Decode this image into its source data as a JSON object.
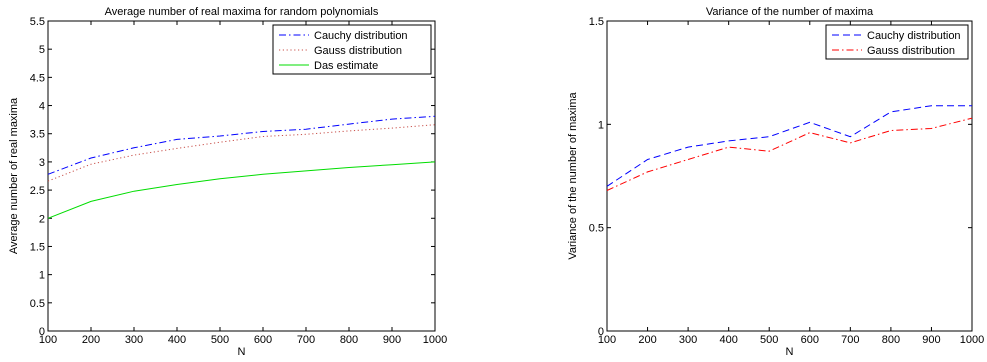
{
  "chart_data": [
    {
      "type": "line",
      "title": "Average number of real maxima for random polynomials",
      "xlabel": "N",
      "ylabel": "Average number of real maxima",
      "xlim": [
        100,
        1000
      ],
      "ylim": [
        0,
        5.5
      ],
      "xticks": [
        100,
        200,
        300,
        400,
        500,
        600,
        700,
        800,
        900,
        1000
      ],
      "yticks": [
        0,
        0.5,
        1,
        1.5,
        2,
        2.5,
        3,
        3.5,
        4,
        4.5,
        5,
        5.5
      ],
      "grid": false,
      "legend": "top-right",
      "x": [
        100,
        200,
        300,
        400,
        500,
        600,
        700,
        800,
        900,
        1000
      ],
      "series": [
        {
          "name": "Cauchy distribution",
          "color": "#0000ff",
          "dash": "dashdot",
          "values": [
            2.78,
            3.07,
            3.25,
            3.4,
            3.46,
            3.54,
            3.58,
            3.67,
            3.76,
            3.81
          ]
        },
        {
          "name": "Gauss distribution",
          "color": "#c8504a",
          "dash": "dotted",
          "values": [
            2.66,
            2.96,
            3.12,
            3.24,
            3.35,
            3.45,
            3.49,
            3.55,
            3.6,
            3.66
          ]
        },
        {
          "name": "Das estimate",
          "color": "#00dd00",
          "dash": "solid",
          "values": [
            2.0,
            2.3,
            2.48,
            2.6,
            2.7,
            2.78,
            2.84,
            2.9,
            2.95,
            3.0
          ]
        }
      ]
    },
    {
      "type": "line",
      "title": "Variance of the number of maxima",
      "xlabel": "N",
      "ylabel": "Variance of the number of maxima",
      "xlim": [
        100,
        1000
      ],
      "ylim": [
        0,
        1.5
      ],
      "xticks": [
        100,
        200,
        300,
        400,
        500,
        600,
        700,
        800,
        900,
        1000
      ],
      "yticks": [
        0,
        0.5,
        1,
        1.5
      ],
      "grid": false,
      "legend": "top-right",
      "x": [
        100,
        200,
        300,
        400,
        500,
        600,
        700,
        800,
        900,
        1000
      ],
      "series": [
        {
          "name": "Cauchy distribution",
          "color": "#0000ff",
          "dash": "dashed",
          "values": [
            0.7,
            0.83,
            0.89,
            0.92,
            0.94,
            1.01,
            0.94,
            1.06,
            1.09,
            1.09
          ]
        },
        {
          "name": "Gauss distribution",
          "color": "#ff0000",
          "dash": "dashdot",
          "values": [
            0.68,
            0.77,
            0.83,
            0.89,
            0.87,
            0.96,
            0.91,
            0.97,
            0.98,
            1.03
          ]
        }
      ]
    }
  ]
}
